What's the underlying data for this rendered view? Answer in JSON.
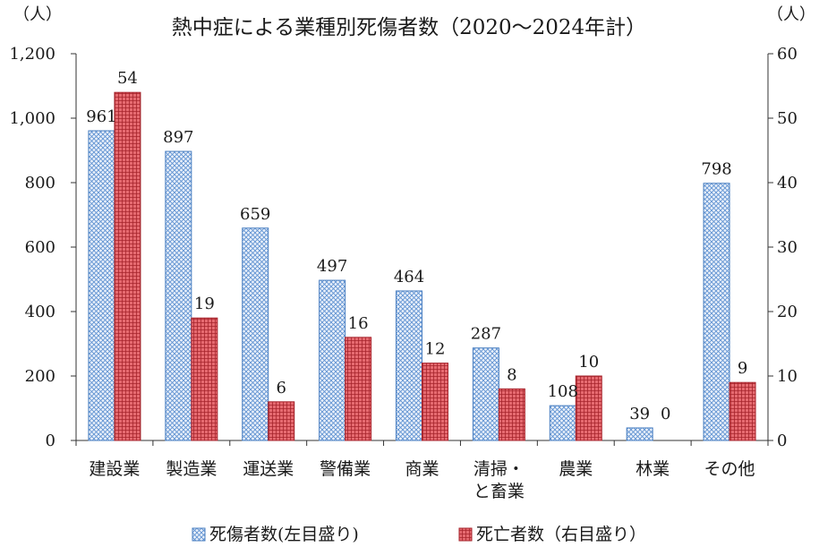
{
  "chart_data": {
    "type": "bar",
    "title": "熱中症による業種別死傷者数（2020～2024年計）",
    "y_left_unit": "（人）",
    "y_right_unit": "（人）",
    "y_left_ticks": [
      "0",
      "200",
      "400",
      "600",
      "800",
      "1,000",
      "1,200"
    ],
    "y_right_ticks": [
      "0",
      "10",
      "20",
      "30",
      "40",
      "50",
      "60"
    ],
    "ylim_left": [
      0,
      1200
    ],
    "ylim_right": [
      0,
      60
    ],
    "grid": false,
    "legend_position": "bottom",
    "categories": [
      [
        "建設業"
      ],
      [
        "製造業"
      ],
      [
        "運送業"
      ],
      [
        "警備業"
      ],
      [
        "商業"
      ],
      [
        "清掃・",
        "と畜業"
      ],
      [
        "農業"
      ],
      [
        "林業"
      ],
      [
        "その他"
      ]
    ],
    "series": [
      {
        "name": "死傷者数(左目盛り)",
        "axis": "left",
        "color": "#4a7fc1",
        "values": [
          961,
          897,
          659,
          497,
          464,
          287,
          108,
          39,
          798
        ]
      },
      {
        "name": "死亡者数（右目盛り）",
        "axis": "right",
        "color": "#c0393f",
        "values": [
          54,
          19,
          6,
          16,
          12,
          8,
          10,
          0,
          9
        ]
      }
    ]
  }
}
